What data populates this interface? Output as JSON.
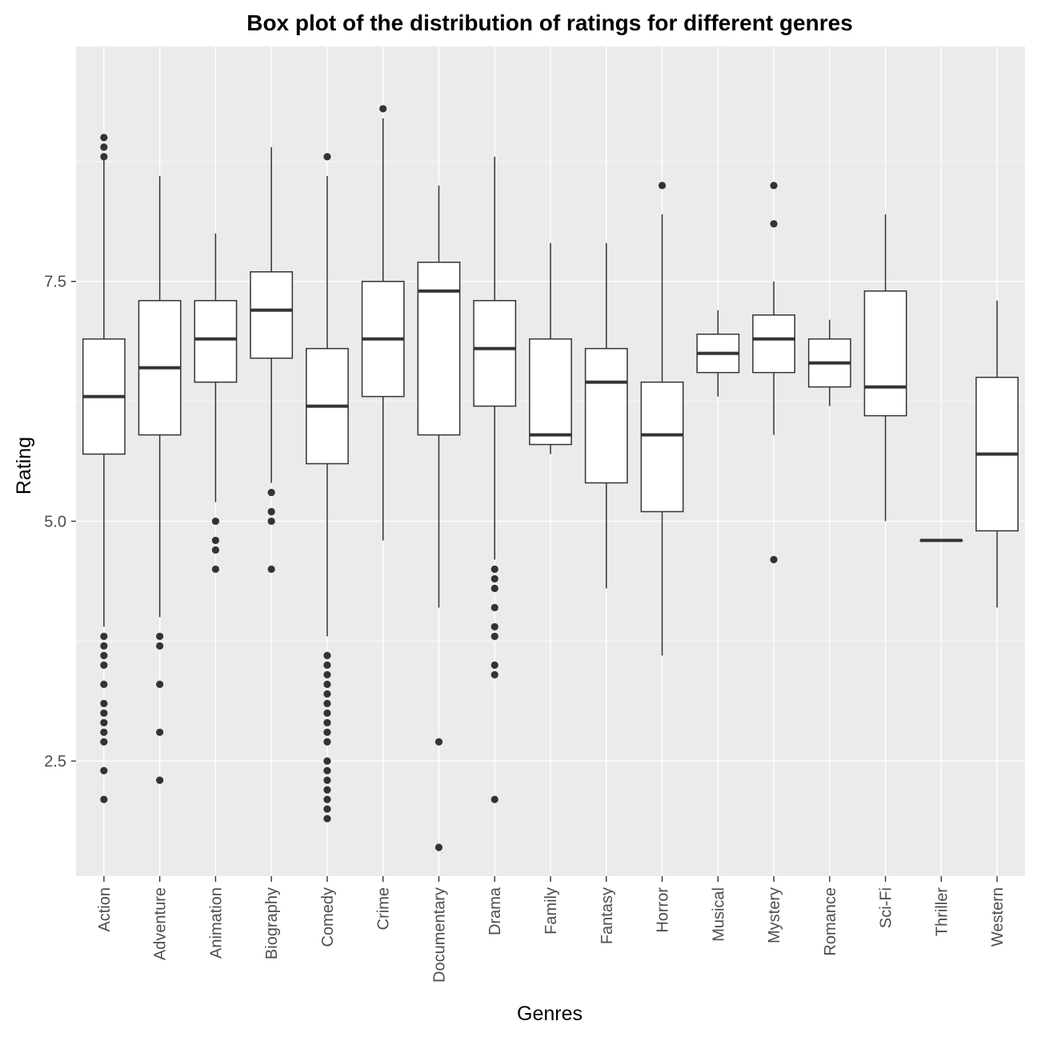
{
  "chart_data": {
    "type": "box",
    "title": "Box plot of the distribution of ratings for different genres",
    "xlabel": "Genres",
    "ylabel": "Rating",
    "ylim": [
      1.3,
      9.95
    ],
    "yticks": [
      2.5,
      5.0,
      7.5
    ],
    "ytick_labels": [
      "2.5",
      "5.0",
      "7.5"
    ],
    "grid": true,
    "legend": "none",
    "colors": {
      "panel": "#ebebeb",
      "grid": "#ffffff",
      "box_fill": "#ffffff",
      "stroke": "#333333",
      "tick_text": "#4d4d4d"
    },
    "categories": [
      "Action",
      "Adventure",
      "Animation",
      "Biography",
      "Comedy",
      "Crime",
      "Documentary",
      "Drama",
      "Family",
      "Fantasy",
      "Horror",
      "Musical",
      "Mystery",
      "Romance",
      "Sci-Fi",
      "Thriller",
      "Western"
    ],
    "boxes": [
      {
        "category": "Action",
        "lower_whisker": 3.9,
        "q1": 5.7,
        "median": 6.3,
        "q3": 6.9,
        "upper_whisker": 8.8,
        "outliers": [
          9.0,
          8.9,
          8.8,
          3.8,
          3.7,
          3.6,
          3.5,
          3.3,
          3.1,
          3.0,
          2.9,
          2.8,
          2.7,
          2.4,
          2.1
        ]
      },
      {
        "category": "Adventure",
        "lower_whisker": 4.0,
        "q1": 5.9,
        "median": 6.6,
        "q3": 7.3,
        "upper_whisker": 8.6,
        "outliers": [
          3.8,
          3.7,
          3.3,
          2.8,
          2.3
        ]
      },
      {
        "category": "Animation",
        "lower_whisker": 5.2,
        "q1": 6.45,
        "median": 6.9,
        "q3": 7.3,
        "upper_whisker": 8.0,
        "outliers": [
          5.0,
          4.8,
          4.7,
          4.5
        ]
      },
      {
        "category": "Biography",
        "lower_whisker": 5.4,
        "q1": 6.7,
        "median": 7.2,
        "q3": 7.6,
        "upper_whisker": 8.9,
        "outliers": [
          5.3,
          5.1,
          5.0,
          4.5
        ]
      },
      {
        "category": "Comedy",
        "lower_whisker": 3.8,
        "q1": 5.6,
        "median": 6.2,
        "q3": 6.8,
        "upper_whisker": 8.6,
        "outliers": [
          8.8,
          3.6,
          3.5,
          3.4,
          3.3,
          3.2,
          3.1,
          3.0,
          2.9,
          2.8,
          2.7,
          2.5,
          2.4,
          2.3,
          2.2,
          2.1,
          2.0,
          1.9
        ]
      },
      {
        "category": "Crime",
        "lower_whisker": 4.8,
        "q1": 6.3,
        "median": 6.9,
        "q3": 7.5,
        "upper_whisker": 9.2,
        "outliers": [
          9.3
        ]
      },
      {
        "category": "Documentary",
        "lower_whisker": 4.1,
        "q1": 5.9,
        "median": 7.4,
        "q3": 7.7,
        "upper_whisker": 8.5,
        "outliers": [
          2.7,
          1.6
        ]
      },
      {
        "category": "Drama",
        "lower_whisker": 4.6,
        "q1": 6.2,
        "median": 6.8,
        "q3": 7.3,
        "upper_whisker": 8.8,
        "outliers": [
          4.5,
          4.4,
          4.3,
          4.1,
          3.9,
          3.8,
          3.5,
          3.4,
          2.1
        ]
      },
      {
        "category": "Family",
        "lower_whisker": 5.7,
        "q1": 5.8,
        "median": 5.9,
        "q3": 6.9,
        "upper_whisker": 7.9,
        "outliers": []
      },
      {
        "category": "Fantasy",
        "lower_whisker": 4.3,
        "q1": 5.4,
        "median": 6.45,
        "q3": 6.8,
        "upper_whisker": 7.9,
        "outliers": []
      },
      {
        "category": "Horror",
        "lower_whisker": 3.6,
        "q1": 5.1,
        "median": 5.9,
        "q3": 6.45,
        "upper_whisker": 8.2,
        "outliers": [
          8.5
        ]
      },
      {
        "category": "Musical",
        "lower_whisker": 6.3,
        "q1": 6.55,
        "median": 6.75,
        "q3": 6.95,
        "upper_whisker": 7.2,
        "outliers": []
      },
      {
        "category": "Mystery",
        "lower_whisker": 5.9,
        "q1": 6.55,
        "median": 6.9,
        "q3": 7.15,
        "upper_whisker": 7.5,
        "outliers": [
          8.5,
          8.1,
          4.6
        ]
      },
      {
        "category": "Romance",
        "lower_whisker": 6.2,
        "q1": 6.4,
        "median": 6.65,
        "q3": 6.9,
        "upper_whisker": 7.1,
        "outliers": []
      },
      {
        "category": "Sci-Fi",
        "lower_whisker": 5.0,
        "q1": 6.1,
        "median": 6.4,
        "q3": 7.4,
        "upper_whisker": 8.2,
        "outliers": []
      },
      {
        "category": "Thriller",
        "lower_whisker": 4.8,
        "q1": 4.8,
        "median": 4.8,
        "q3": 4.8,
        "upper_whisker": 4.8,
        "outliers": []
      },
      {
        "category": "Western",
        "lower_whisker": 4.1,
        "q1": 4.9,
        "median": 5.7,
        "q3": 6.5,
        "upper_whisker": 7.3,
        "outliers": []
      }
    ]
  }
}
